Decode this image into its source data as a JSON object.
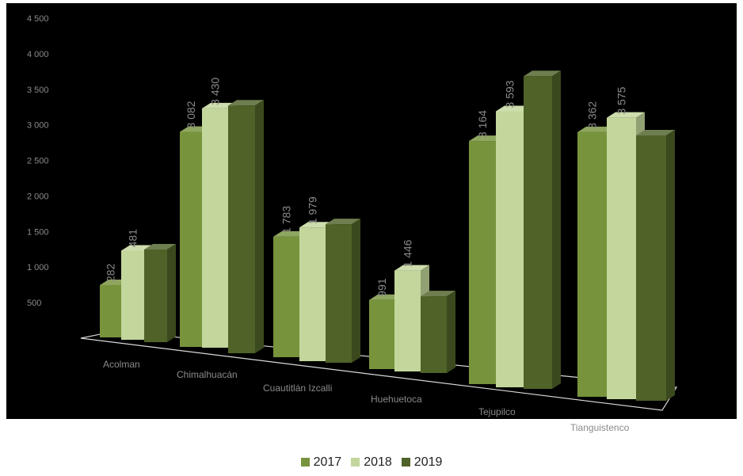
{
  "chart_data": {
    "type": "bar",
    "categories": [
      "Acolman",
      "Chimalhuacán",
      "Cuautitlán Izcalli",
      "Huehuetoca",
      "Tejupilco",
      "Tianguistenco"
    ],
    "series": [
      {
        "name": "2017",
        "color": "#77933c",
        "values": [
          282,
          3082,
          1783,
          991,
          3164,
          3362
        ]
      },
      {
        "name": "2018",
        "color": "#c3d69b",
        "values": [
          481,
          3430,
          1979,
          1446,
          3593,
          3575
        ]
      },
      {
        "name": "2019",
        "color": "#4f6228",
        "values": [
          500,
          3550,
          2050,
          1100,
          4070,
          3370
        ]
      }
    ],
    "data_labels": [
      [
        "282",
        "3 082",
        "1 783",
        "991",
        "3 164",
        "3 362"
      ],
      [
        "481",
        "3 430",
        "1 979",
        "1 446",
        "3 593",
        "3 575"
      ]
    ],
    "yticks": [
      "500",
      "1 000",
      "1 500",
      "2 000",
      "2 500",
      "3 000",
      "3 500",
      "4 000",
      "4 500"
    ],
    "ylim": [
      0,
      4500
    ],
    "legend_position": "bottom",
    "background": "#000000"
  }
}
